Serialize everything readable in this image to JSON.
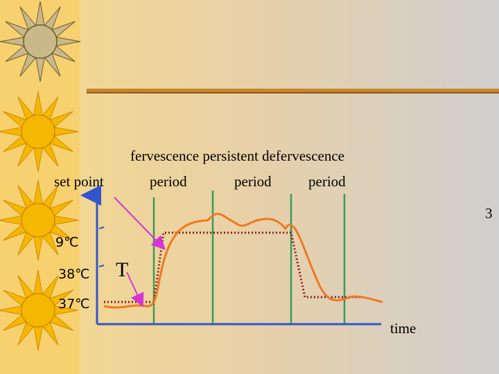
{
  "heading": "fervescence persistent defervescence",
  "row_labels": {
    "set_point": "set point",
    "periods": [
      "period",
      "period",
      "period"
    ]
  },
  "axis_labels": {
    "top": "3",
    "t39": "9℃",
    "t38": "38℃",
    "t37": "37℃",
    "marker": "T",
    "x": "time"
  }
}
